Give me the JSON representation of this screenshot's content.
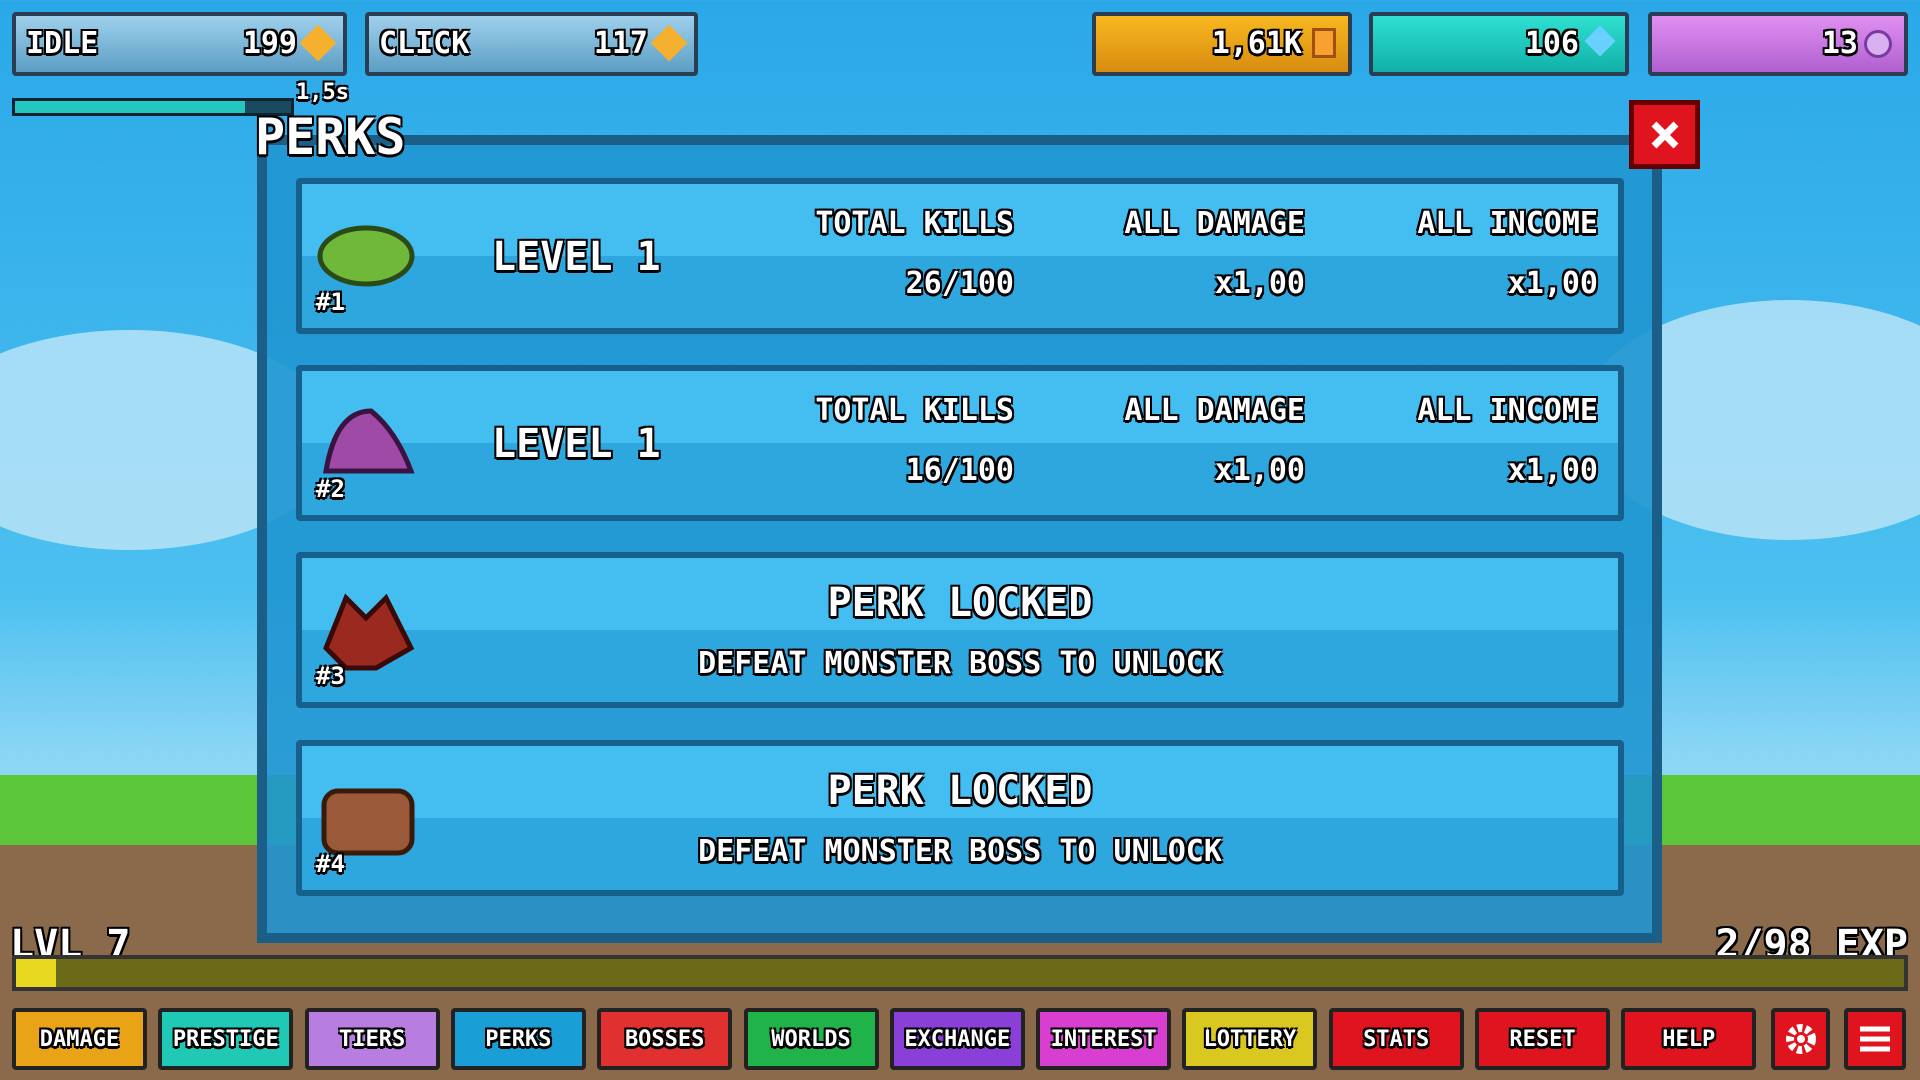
{
  "top_bar": {
    "idle": {
      "label": "IDLE",
      "value": "199"
    },
    "click": {
      "label": "CLICK",
      "value": "117"
    },
    "timer": "1,5s",
    "currencies": [
      "1,61K",
      "106",
      "13"
    ]
  },
  "panel": {
    "title": "PERKS",
    "perks": [
      {
        "number": "#1",
        "level": "LEVEL 1",
        "headers": [
          "TOTAL KILLS",
          "ALL DAMAGE",
          "ALL INCOME"
        ],
        "values": [
          "26/100",
          "x1,00",
          "x1,00"
        ]
      },
      {
        "number": "#2",
        "level": "LEVEL 1",
        "headers": [
          "TOTAL KILLS",
          "ALL DAMAGE",
          "ALL INCOME"
        ],
        "values": [
          "16/100",
          "x1,00",
          "x1,00"
        ]
      },
      {
        "number": "#3",
        "title": "PERK LOCKED",
        "subtitle": "DEFEAT MONSTER BOSS TO UNLOCK"
      },
      {
        "number": "#4",
        "title": "PERK LOCKED",
        "subtitle": "DEFEAT MONSTER BOSS TO UNLOCK"
      }
    ]
  },
  "footer": {
    "level": "LVL 7",
    "exp": "2/98 EXP",
    "buttons": [
      "DAMAGE",
      "PRESTIGE",
      "TIERS",
      "PERKS",
      "BOSSES",
      "WORLDS",
      "EXCHANGE",
      "INTEREST",
      "LOTTERY",
      "STATS",
      "RESET",
      "HELP"
    ]
  }
}
